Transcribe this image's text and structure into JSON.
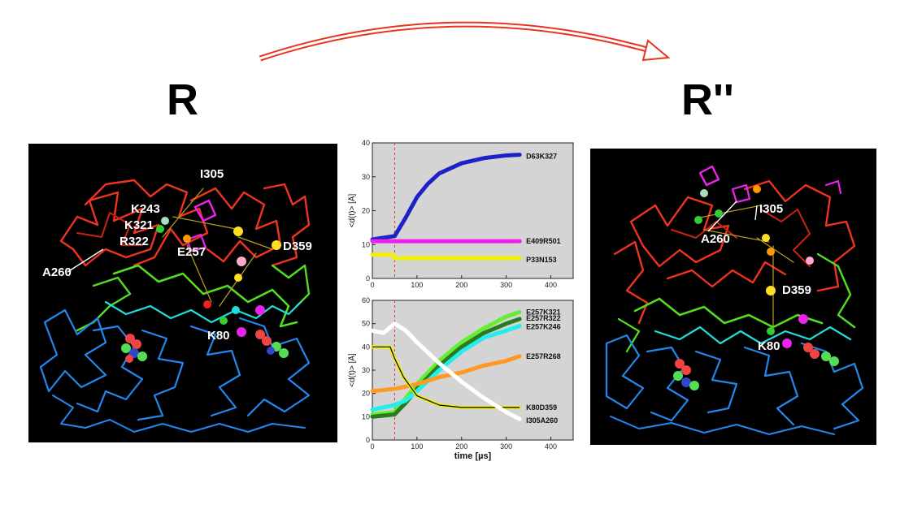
{
  "states": {
    "left": "R",
    "right": "R''"
  },
  "left_structure": {
    "labels": {
      "i305": "I305",
      "k243": "K243",
      "k321": "K321",
      "r322": "R322",
      "e257": "E257",
      "a260": "A260",
      "d359": "D359",
      "k80": "K80"
    }
  },
  "right_structure": {
    "labels": {
      "i305": "I305",
      "a260": "A260",
      "d359": "D359",
      "k80": "K80"
    }
  },
  "chart_data": [
    {
      "type": "line",
      "xlabel": "",
      "ylabel": "<d(t)> [Å]",
      "xlim": [
        0,
        450
      ],
      "ylim": [
        0,
        40
      ],
      "xticks": [
        0,
        100,
        200,
        300,
        400
      ],
      "yticks": [
        0,
        10,
        20,
        30,
        40
      ],
      "event_line_x": 50,
      "series": [
        {
          "name": "D63K327",
          "color": "#1c22c8",
          "x": [
            0,
            25,
            50,
            75,
            100,
            125,
            150,
            200,
            250,
            300,
            330
          ],
          "y": [
            11.5,
            12,
            12.5,
            18,
            24,
            28,
            31,
            34,
            35.5,
            36.3,
            36.5
          ]
        },
        {
          "name": "E409R501",
          "color": "#ee22ee",
          "x": [
            0,
            50,
            100,
            200,
            330
          ],
          "y": [
            11,
            11,
            11,
            11,
            11
          ]
        },
        {
          "name": "P33N153",
          "color": "#f0f000",
          "x": [
            0,
            45,
            50,
            100,
            200,
            330
          ],
          "y": [
            7,
            7,
            6,
            6,
            6,
            6
          ]
        }
      ]
    },
    {
      "type": "line",
      "xlabel": "time [µs]",
      "ylabel": "<d(t)> [Å]",
      "xlim": [
        0,
        450
      ],
      "ylim": [
        0,
        60
      ],
      "xticks": [
        0,
        100,
        200,
        300,
        400
      ],
      "yticks": [
        0,
        10,
        20,
        30,
        40,
        50,
        60
      ],
      "event_line_x": 50,
      "series": [
        {
          "name": "E257K321",
          "color": "#66ee33",
          "x": [
            0,
            50,
            75,
            100,
            150,
            200,
            250,
            300,
            330
          ],
          "y": [
            11,
            12,
            18,
            24,
            34,
            42,
            48,
            53,
            55
          ]
        },
        {
          "name": "E257R322",
          "color": "#2a7a22",
          "x": [
            0,
            50,
            75,
            100,
            150,
            200,
            250,
            300,
            330
          ],
          "y": [
            10,
            11,
            16,
            22,
            32,
            40,
            46,
            50,
            52
          ]
        },
        {
          "name": "E257K246",
          "color": "#22eeee",
          "x": [
            0,
            50,
            75,
            100,
            150,
            200,
            250,
            300,
            330
          ],
          "y": [
            13,
            15,
            17,
            21,
            30,
            38,
            44,
            47,
            49
          ]
        },
        {
          "name": "E257R268",
          "color": "#ff9922",
          "x": [
            0,
            50,
            100,
            150,
            200,
            250,
            300,
            330
          ],
          "y": [
            21,
            22,
            24,
            27,
            29,
            32,
            34,
            36
          ]
        },
        {
          "name": "K80D359",
          "color": "#f0f000",
          "x": [
            0,
            40,
            50,
            70,
            100,
            150,
            200,
            250,
            330
          ],
          "y": [
            40,
            40,
            35,
            27,
            19,
            15,
            14,
            14,
            14
          ]
        },
        {
          "name": "I305A260",
          "color": "#ffffff",
          "x": [
            0,
            25,
            50,
            75,
            100,
            150,
            200,
            250,
            300,
            330
          ],
          "y": [
            47,
            46,
            50,
            47,
            42,
            33,
            25,
            18,
            12,
            9
          ]
        }
      ]
    }
  ]
}
